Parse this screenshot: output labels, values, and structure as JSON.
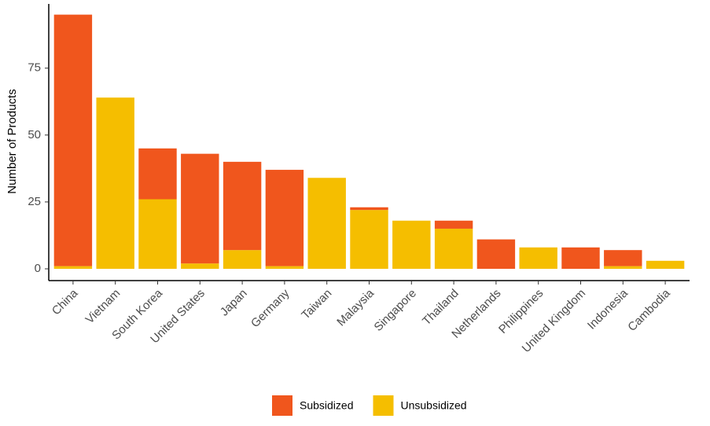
{
  "chart_data": {
    "type": "stacked-bar",
    "y_label": "Number of Products",
    "categories": [
      "China",
      "Vietnam",
      "South Korea",
      "United States",
      "Japan",
      "Germany",
      "Taiwan",
      "Malaysia",
      "Singapore",
      "Thailand",
      "Netherlands",
      "Philippines",
      "United Kingdom",
      "Indonesia",
      "Cambodia"
    ],
    "series": [
      {
        "name": "Unsubsidized",
        "color": "#F5BE00",
        "values": [
          1,
          64,
          26,
          2,
          7,
          1,
          34,
          22,
          18,
          15,
          0,
          8,
          0,
          1,
          3
        ]
      },
      {
        "name": "Subsidized",
        "color": "#F0561D",
        "values": [
          94,
          0,
          19,
          41,
          33,
          36,
          0,
          1,
          0,
          3,
          11,
          0,
          8,
          6,
          0
        ]
      }
    ],
    "ylim": [
      -4.4,
      99
    ],
    "yticks": [
      0,
      25,
      50,
      75
    ],
    "legend": "bottom"
  }
}
